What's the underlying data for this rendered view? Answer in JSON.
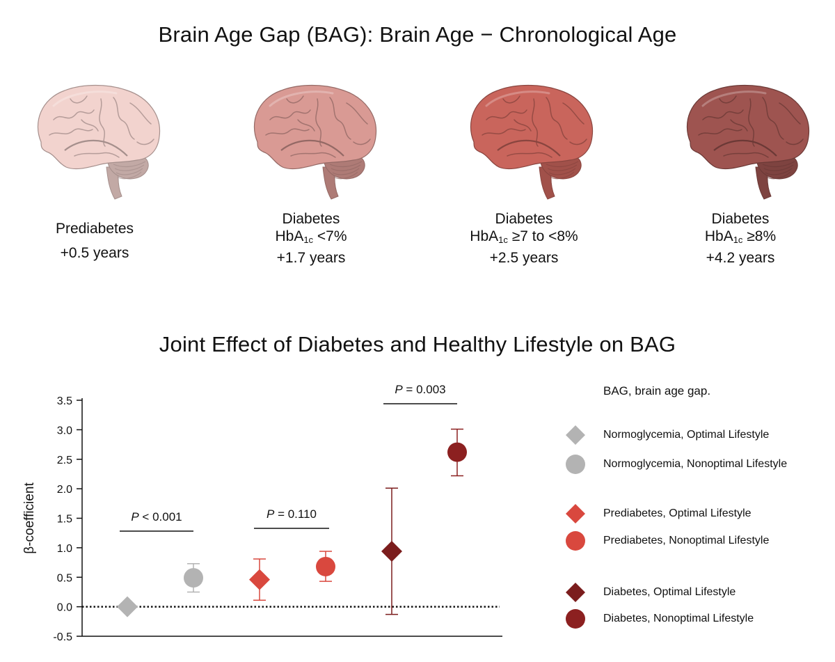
{
  "header": {
    "title": "Brain Age Gap (BAG): Brain Age − Chronological Age"
  },
  "brain_groups": [
    {
      "name_line1": "",
      "name_line2": "Prediabetes",
      "hba_prefix": "",
      "hba_sub": "",
      "hba_suffix": "",
      "gap": "+0.5 years",
      "color": "#f2d3ce"
    },
    {
      "name_line1": "Diabetes",
      "name_line2": "",
      "hba_prefix": "HbA",
      "hba_sub": "1c",
      "hba_suffix": " <7%",
      "gap": "+1.7 years",
      "color": "#d99a94"
    },
    {
      "name_line1": "Diabetes",
      "name_line2": "",
      "hba_prefix": "HbA",
      "hba_sub": "1c",
      "hba_suffix": " ≥7 to <8%",
      "gap": "+2.5 years",
      "color": "#c9655c"
    },
    {
      "name_line1": "Diabetes",
      "name_line2": "",
      "hba_prefix": "HbA",
      "hba_sub": "1c",
      "hba_suffix": " ≥8%",
      "gap": "+4.2 years",
      "color": "#9e5450"
    }
  ],
  "chart_data": {
    "type": "scatter",
    "title": "Joint Effect of Diabetes and Healthy Lifestyle on BAG",
    "ylabel": "β-coefficient",
    "xlabel": "",
    "ylim": [
      -0.5,
      3.5
    ],
    "yticks": [
      "-0.5",
      "0.0",
      "0.5",
      "1.0",
      "1.5",
      "2.0",
      "2.5",
      "3.0",
      "3.5"
    ],
    "reference_line": 0.0,
    "legend_note": "BAG, brain age gap.",
    "legend_position": "right",
    "series": [
      {
        "name": "Normoglycemia, Optimal Lifestyle",
        "marker": "diamond",
        "color": "#b3b3b3",
        "value": 0.0,
        "ci_low": null,
        "ci_high": null
      },
      {
        "name": "Normoglycemia, Nonoptimal Lifestyle",
        "marker": "circle",
        "color": "#b3b3b3",
        "value": 0.49,
        "ci_low": 0.25,
        "ci_high": 0.73
      },
      {
        "name": "Prediabetes, Optimal Lifestyle",
        "marker": "diamond",
        "color": "#d9483e",
        "value": 0.46,
        "ci_low": 0.11,
        "ci_high": 0.81
      },
      {
        "name": "Prediabetes, Nonoptimal Lifestyle",
        "marker": "circle",
        "color": "#d9483e",
        "value": 0.68,
        "ci_low": 0.43,
        "ci_high": 0.94
      },
      {
        "name": "Diabetes, Optimal Lifestyle",
        "marker": "diamond",
        "color": "#7b1d1d",
        "value": 0.94,
        "ci_low": -0.13,
        "ci_high": 2.01
      },
      {
        "name": "Diabetes, Nonoptimal Lifestyle",
        "marker": "circle",
        "color": "#8c2020",
        "value": 2.62,
        "ci_low": 2.22,
        "ci_high": 3.01
      }
    ],
    "comparisons": [
      {
        "label_p": "P",
        "label_rest": " < 0.001"
      },
      {
        "label_p": "P",
        "label_rest": " = 0.110"
      },
      {
        "label_p": "P",
        "label_rest": " = 0.003"
      }
    ]
  }
}
